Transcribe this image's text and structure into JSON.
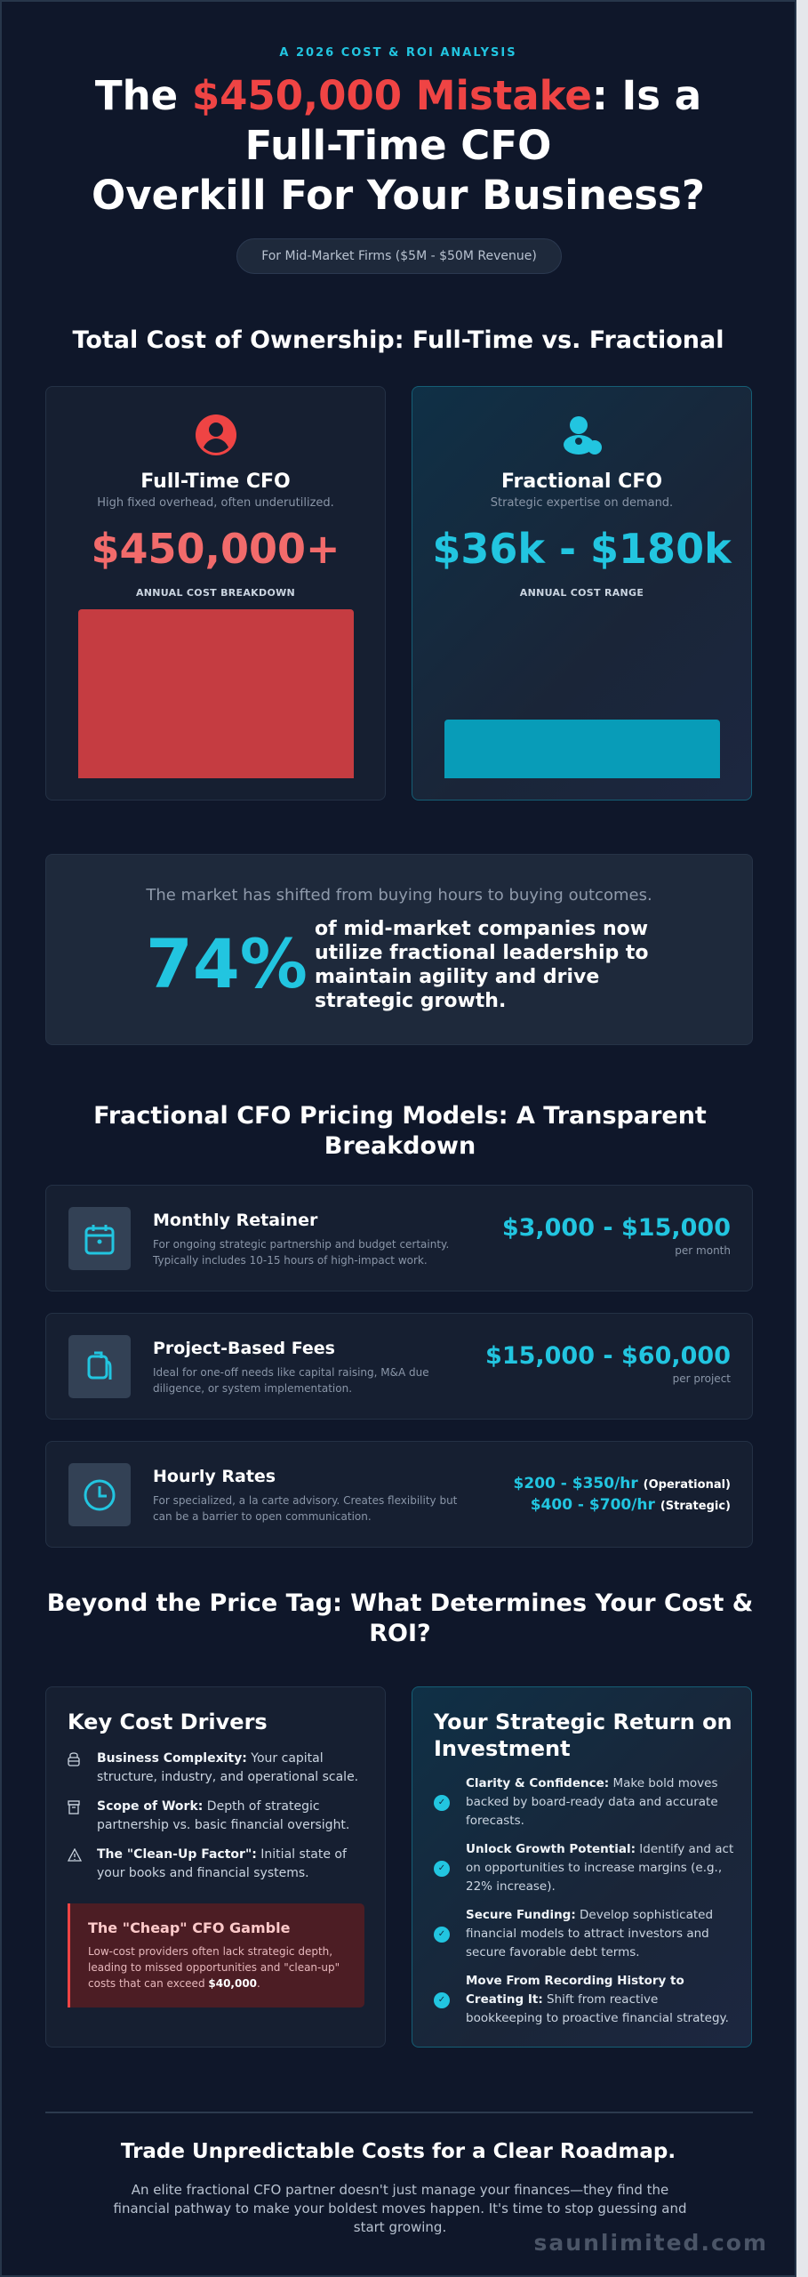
{
  "header": {
    "eyebrow": "A 2026 COST & ROI ANALYSIS",
    "title_pre": "The ",
    "title_highlight": "$450,000 Mistake",
    "title_line1_post": ": Is a",
    "title_line2": "Full-Time CFO",
    "title_line3": "Overkill For Your Business?",
    "pill": "For Mid-Market Firms ($5M - $50M Revenue)"
  },
  "tco": {
    "heading": "Total Cost of Ownership: Full-Time vs. Fractional",
    "full_time": {
      "icon": "user-circle-icon",
      "title": "Full-Time CFO",
      "subtitle": "High fixed overhead, often underutilized.",
      "price": "$450,000+",
      "label": "ANNUAL COST BREAKDOWN",
      "bar_fill_relative": 1.0,
      "color": "#c53c41"
    },
    "fractional": {
      "icon": "users-icon",
      "title": "Fractional CFO",
      "subtitle": "Strategic expertise on demand.",
      "price": "$36k - $180k",
      "label": "ANNUAL COST RANGE",
      "bar_fill_relative": 0.35,
      "color": "#089cb8"
    }
  },
  "stat": {
    "subtitle": "The market has shifted from buying hours to buying outcomes.",
    "value": "74%",
    "text": "of mid-market companies now utilize fractional leadership to maintain agility and drive strategic growth."
  },
  "pricing": {
    "heading": "Fractional CFO Pricing Models: A Transparent Breakdown",
    "models": [
      {
        "icon": "calendar-icon",
        "title": "Monthly Retainer",
        "desc": "For ongoing strategic partnership and budget certainty. Typically includes 10-15 hours of high-impact work.",
        "price": "$3,000 - $15,000",
        "unit": "per month"
      },
      {
        "icon": "clipboard-icon",
        "title": "Project-Based Fees",
        "desc": "Ideal for one-off needs like capital raising, M&A due diligence, or system implementation.",
        "price": "$15,000 - $60,000",
        "unit": "per project"
      },
      {
        "icon": "clock-icon",
        "title": "Hourly Rates",
        "desc": "For specialized, a la carte advisory. Creates flexibility but can be a barrier to open communication.",
        "rates": [
          {
            "price": "$200 - $350/hr",
            "tier": "(Operational)"
          },
          {
            "price": "$400 - $700/hr",
            "tier": "(Strategic)"
          }
        ]
      }
    ]
  },
  "beyond": {
    "heading": "Beyond the Price Tag: What Determines Your Cost & ROI?",
    "drivers": {
      "title": "Key Cost Drivers",
      "items": [
        {
          "icon": "building-icon",
          "label": "Business Complexity:",
          "text": " Your capital structure, industry, and operational scale."
        },
        {
          "icon": "archive-icon",
          "label": "Scope of Work:",
          "text": " Depth of strategic partnership vs. basic financial oversight."
        },
        {
          "icon": "warning-icon",
          "label": "The \"Clean-Up Factor\":",
          "text": " Initial state of your books and financial systems."
        }
      ],
      "gamble": {
        "title": "The \"Cheap\" CFO Gamble",
        "text": "Low-cost providers often lack strategic depth, leading to missed opportunities and \"clean-up\" costs that can exceed ",
        "amount": "$40,000",
        "end": "."
      }
    },
    "roi": {
      "title": "Your Strategic Return on Investment",
      "items": [
        {
          "label": "Clarity & Confidence:",
          "text": " Make bold moves backed by board-ready data and accurate forecasts."
        },
        {
          "label": "Unlock Growth Potential:",
          "text": " Identify and act on opportunities to increase margins (e.g., 22% increase)."
        },
        {
          "label": "Secure Funding:",
          "text": " Develop sophisticated financial models to attract investors and secure favorable debt terms."
        },
        {
          "label": "Move From Recording History to Creating It:",
          "text": " Shift from reactive bookkeeping to proactive financial strategy."
        }
      ]
    }
  },
  "footer": {
    "title": "Trade Unpredictable Costs for a Clear Roadmap.",
    "text": "An elite fractional CFO partner doesn't just manage your finances—they find the financial pathway to make your boldest moves happen. It's time to stop guessing and start growing.",
    "watermark": "saunlimited.com"
  },
  "colors": {
    "background": "#0f172a",
    "accent": "#22c5e0",
    "danger": "#ef4444"
  }
}
